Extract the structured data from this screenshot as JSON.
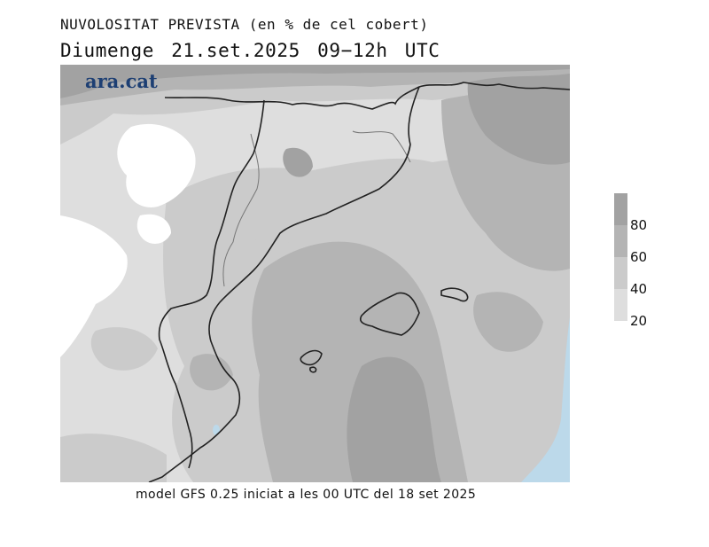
{
  "header": {
    "title": "NUVOLOSITAT PREVISTA (en % de cel cobert)",
    "subtitle": "Diumenge  21.set.2025 09−12h UTC"
  },
  "map": {
    "brand": "ara.cat",
    "colors": {
      "lt20": "#ffffff",
      "c20_40": "#dedede",
      "c40_60": "#cbcbcb",
      "c60_80": "#b4b4b4",
      "c80_100": "#a2a2a2",
      "water": "#bcd9ea",
      "coast": "#222222",
      "border": "#777777",
      "brand": "#1d3f73"
    }
  },
  "legend": {
    "labels": [
      "80",
      "60",
      "40",
      "20"
    ],
    "colors": [
      "#a2a2a2",
      "#b4b4b4",
      "#cbcbcb",
      "#dedede"
    ]
  },
  "footer": {
    "text": "model GFS 0.25 iniciat a les 00 UTC del 18 set 2025"
  }
}
